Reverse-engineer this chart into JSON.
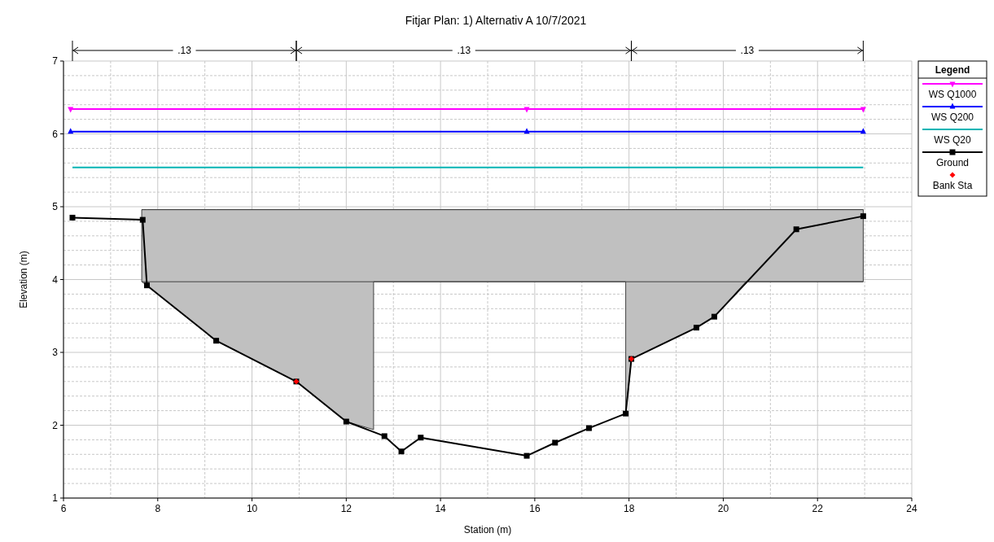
{
  "chart_data": {
    "type": "line",
    "title": "Fitjar Plan: 1) Alternativ A 10/7/2021",
    "xlabel": "Station (m)",
    "ylabel": "Elevation (m)",
    "legend_title": "Legend",
    "xlim": [
      6,
      24
    ],
    "xticks": [
      6,
      8,
      10,
      12,
      14,
      16,
      18,
      20,
      22,
      24
    ],
    "ylim": [
      1,
      7
    ],
    "yticks": [
      1,
      2,
      3,
      4,
      5,
      6,
      7
    ],
    "grid": true,
    "legend": "right",
    "annotations": [
      ".13",
      ".13",
      ".13"
    ],
    "series": [
      {
        "color": "#404040",
        "marker": "none",
        "x": [
          7.66,
          7.77,
          9.24,
          10.94,
          12.0,
          12.58,
          12.58,
          17.93,
          17.93,
          18.05,
          19.43,
          19.81,
          20.48,
          22.97
        ],
        "values": [
          4.96,
          4.96,
          4.96,
          4.96,
          4.96,
          4.96,
          4.96,
          4.96,
          4.96,
          4.96,
          4.96,
          4.96,
          4.96,
          4.96
        ],
        "lower": [
          3.97,
          3.92,
          3.16,
          2.6,
          2.05,
          1.94,
          3.97,
          3.97,
          2.16,
          2.91,
          3.34,
          3.49,
          3.97,
          3.97
        ],
        "upper": [
          4.96,
          4.96,
          4.96,
          4.96,
          4.96,
          4.96,
          4.96,
          4.96,
          4.96,
          4.96,
          4.96,
          4.96,
          4.96,
          4.96
        ]
      },
      {
        "color": "#404040",
        "marker": "none",
        "x": [
          7.66,
          22.97
        ],
        "values": [
          3.97,
          3.97
        ]
      },
      {
        "name": "WS Q1000",
        "color": "#ff00ff",
        "marker": "triangle-down",
        "x": [
          6.15,
          15.83,
          22.97
        ],
        "values": [
          6.34,
          6.34,
          6.34
        ]
      },
      {
        "name": "WS Q200",
        "color": "#0000ff",
        "marker": "triangle",
        "x": [
          6.15,
          15.83,
          22.97
        ],
        "values": [
          6.03,
          6.03,
          6.03
        ]
      },
      {
        "name": "WS Q20",
        "color": "#00b4b4",
        "marker": "none",
        "x": [
          6.19,
          22.97
        ],
        "values": [
          5.54,
          5.54
        ]
      },
      {
        "name": "Ground",
        "color": "#000000",
        "marker": "square",
        "x": [
          6.19,
          7.68,
          7.77,
          9.24,
          10.94,
          12.0,
          12.81,
          13.17,
          13.58,
          15.83,
          16.43,
          17.15,
          17.93,
          18.05,
          19.43,
          19.81,
          21.55,
          22.97
        ],
        "values": [
          4.85,
          4.82,
          3.92,
          3.16,
          2.6,
          2.05,
          1.85,
          1.64,
          1.83,
          1.58,
          1.76,
          1.96,
          2.16,
          2.91,
          3.34,
          3.49,
          4.69,
          4.87
        ]
      },
      {
        "name": "Bank Sta",
        "type": "scatter",
        "color": "#ff0000",
        "marker": "diamond",
        "x": [
          10.94,
          18.05
        ],
        "values": [
          2.6,
          2.91
        ]
      }
    ]
  }
}
